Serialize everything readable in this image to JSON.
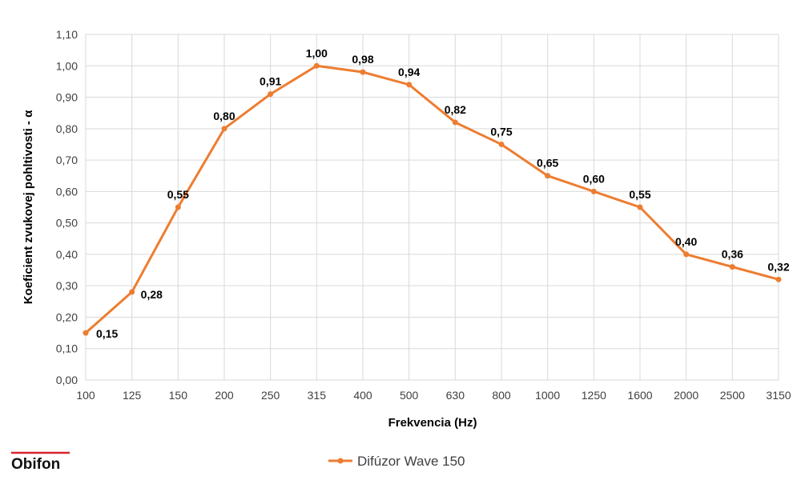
{
  "brand": {
    "logo": "Obifon",
    "logo_accent_color": "#d9232e"
  },
  "colors": {
    "series": "#ed7d31",
    "grid": "#d9d9d9"
  },
  "chart_data": {
    "type": "line",
    "categories": [
      "100",
      "125",
      "150",
      "200",
      "250",
      "315",
      "400",
      "500",
      "630",
      "800",
      "1000",
      "1250",
      "1600",
      "2000",
      "2500",
      "3150"
    ],
    "series": [
      {
        "name": "Difúzor Wave 150",
        "values": [
          0.15,
          0.28,
          0.55,
          0.8,
          0.91,
          1.0,
          0.98,
          0.94,
          0.82,
          0.75,
          0.65,
          0.6,
          0.55,
          0.4,
          0.36,
          0.32
        ],
        "data_labels": [
          "0,15",
          "0,28",
          "0,55",
          "0,80",
          "0,91",
          "1,00",
          "0,98",
          "0,94",
          "0,82",
          "0,75",
          "0,65",
          "0,60",
          "0,55",
          "0,40",
          "0,36",
          "0,32"
        ]
      }
    ],
    "xlabel": "Frekvencia (Hz)",
    "ylabel": "Koeficient zvukovej pohltivosti - α",
    "ylim": [
      0,
      1.1
    ],
    "yticks": [
      0,
      0.1,
      0.2,
      0.3,
      0.4,
      0.5,
      0.6,
      0.7,
      0.8,
      0.9,
      1.0,
      1.1
    ],
    "ytick_labels": [
      "0,00",
      "0,10",
      "0,20",
      "0,30",
      "0,40",
      "0,50",
      "0,60",
      "0,70",
      "0,80",
      "0,90",
      "1,00",
      "1,10"
    ],
    "grid": true,
    "legend_position": "bottom"
  }
}
